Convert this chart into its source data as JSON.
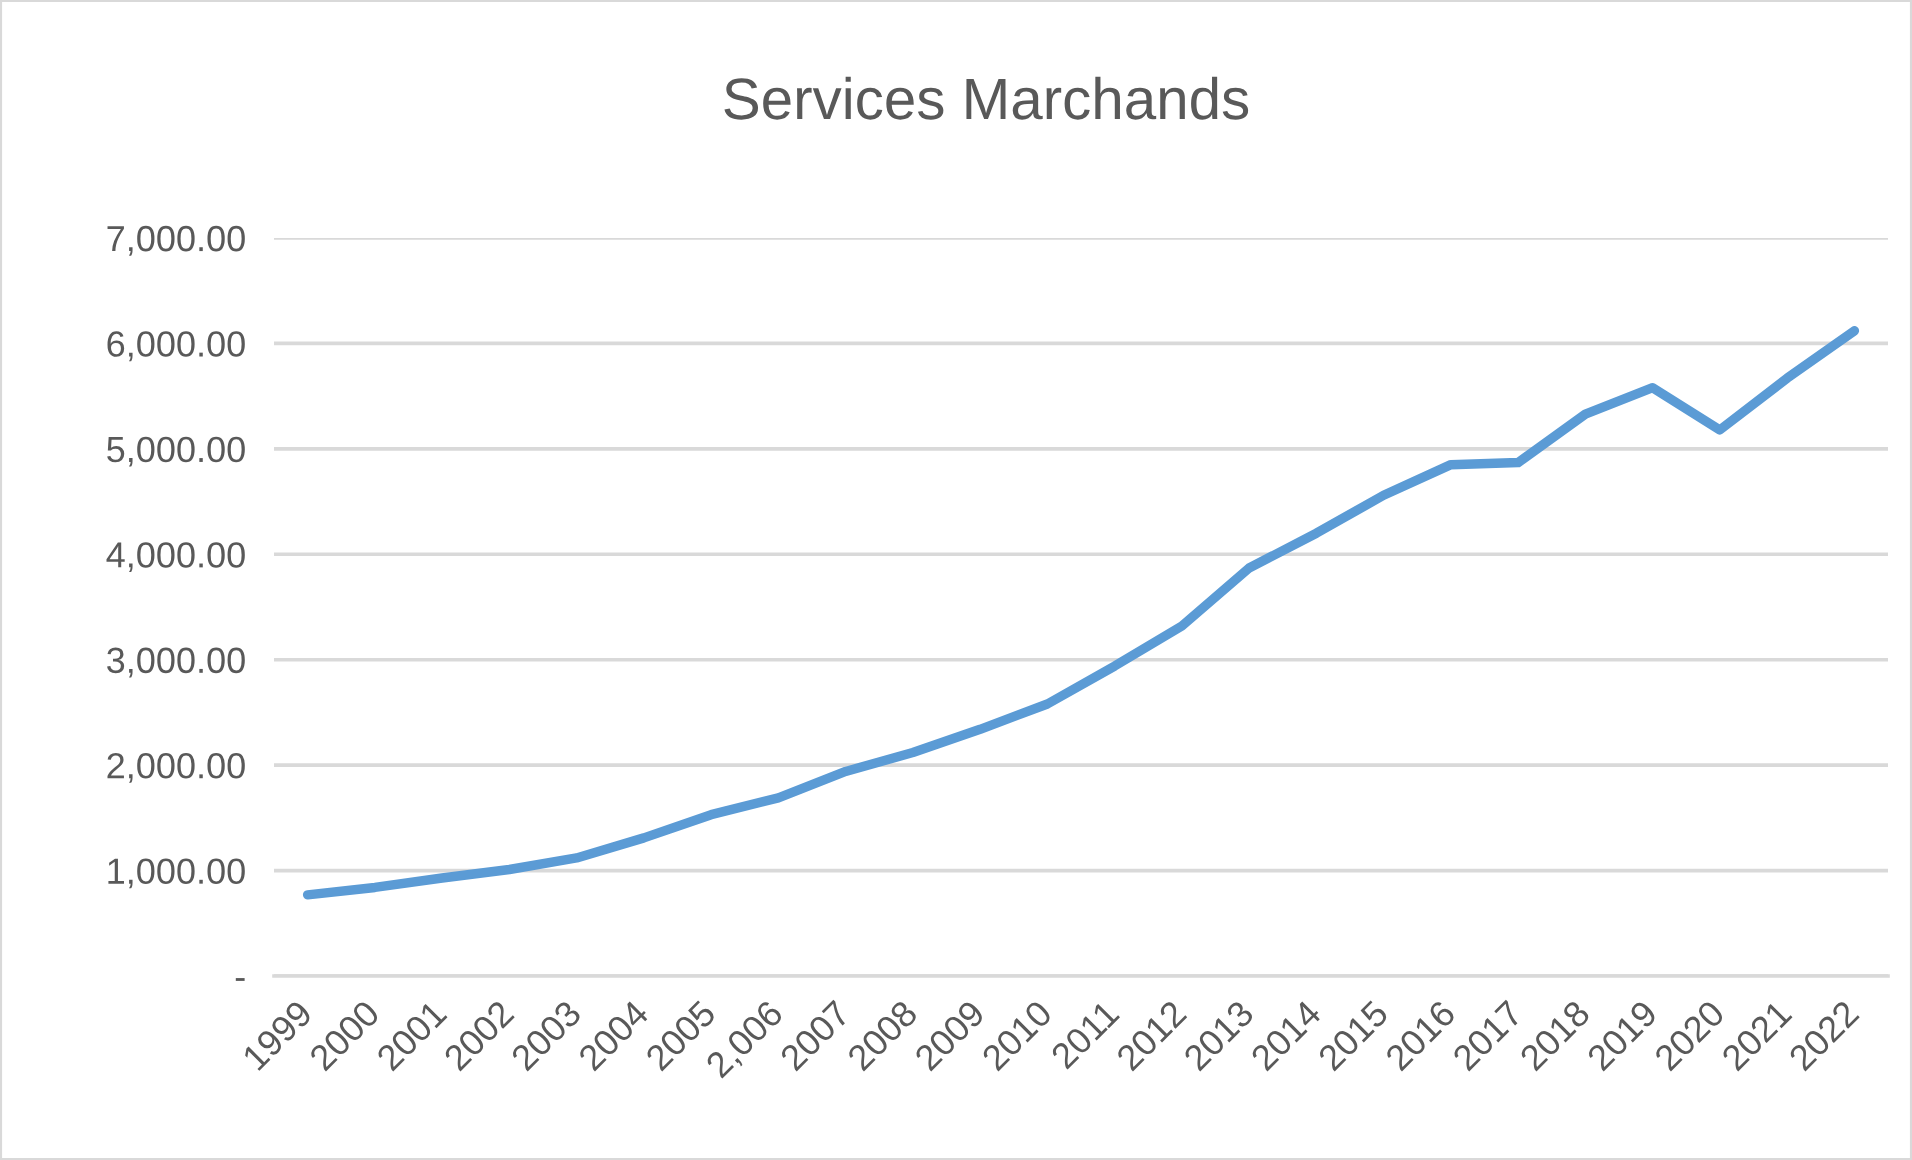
{
  "chart_data": {
    "type": "line",
    "title": "Services Marchands",
    "categories": [
      "1999",
      "2000",
      "2001",
      "2002",
      "2003",
      "2004",
      "2005",
      "2,006",
      "2007",
      "2008",
      "2009",
      "2010",
      "2011",
      "2012",
      "2013",
      "2014",
      "2015",
      "2016",
      "2017",
      "2018",
      "2019",
      "2020",
      "2021",
      "2022"
    ],
    "series": [
      {
        "color": "#5b9bd5",
        "values": [
          770,
          840,
          930,
          1010,
          1120,
          1310,
          1530,
          1690,
          1940,
          2120,
          2340,
          2580,
          2940,
          3320,
          3870,
          4200,
          4560,
          4850,
          4870,
          5330,
          5580,
          5180,
          5670,
          6120
        ]
      }
    ],
    "ylim": [
      0,
      7000
    ],
    "yticks": [
      {
        "value": 0,
        "label": "-"
      },
      {
        "value": 1000,
        "label": "1,000.00"
      },
      {
        "value": 2000,
        "label": "2,000.00"
      },
      {
        "value": 3000,
        "label": "3,000.00"
      },
      {
        "value": 4000,
        "label": "4,000.00"
      },
      {
        "value": 5000,
        "label": "5,000.00"
      },
      {
        "value": 6000,
        "label": "6,000.00"
      },
      {
        "value": 7000,
        "label": "7,000.00"
      }
    ],
    "grid": "y"
  }
}
